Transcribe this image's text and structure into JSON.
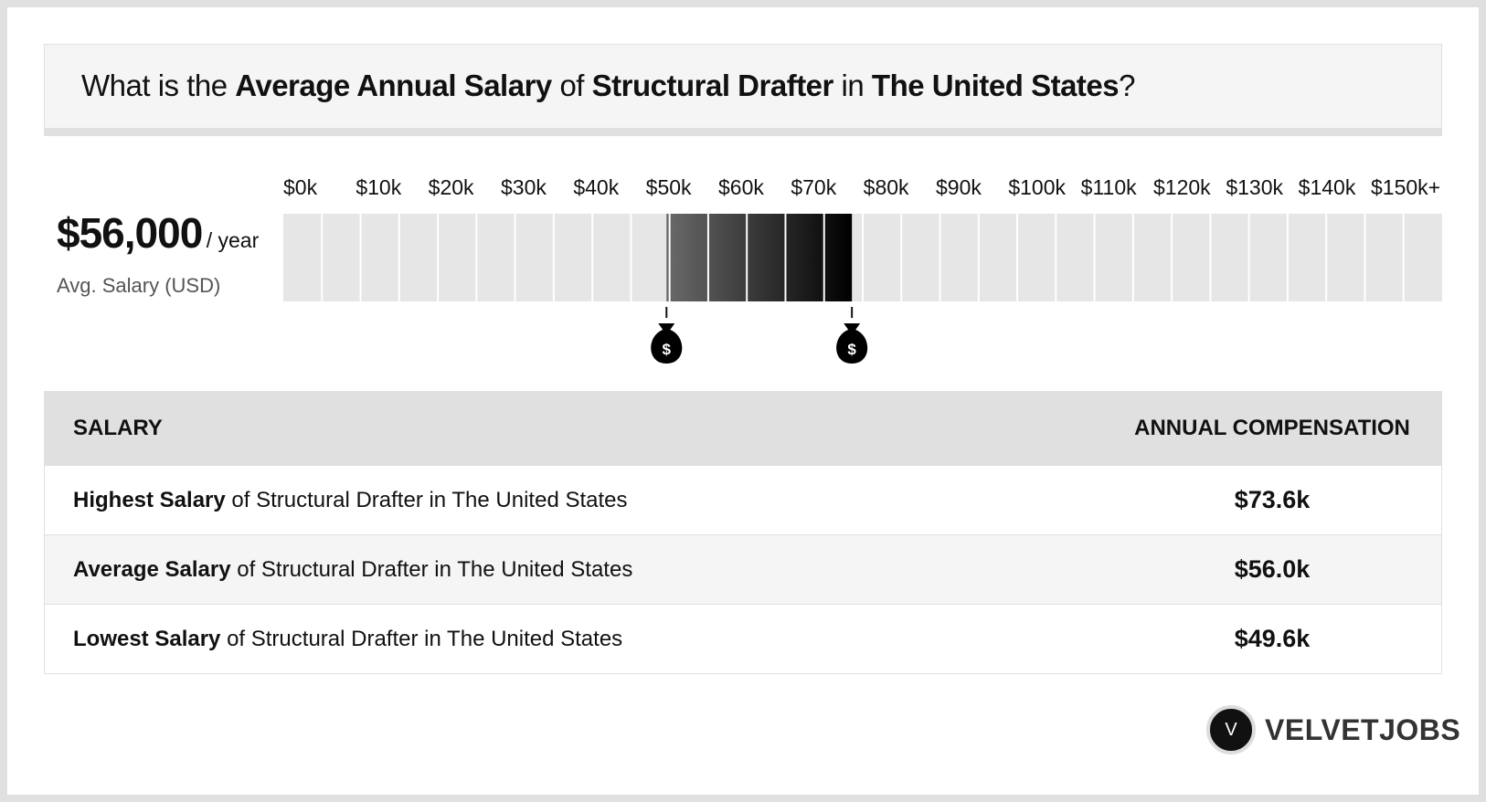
{
  "header": {
    "title": [
      {
        "text": "What is the ",
        "bold": false
      },
      {
        "text": "Average Annual Salary",
        "bold": true
      },
      {
        "text": " of ",
        "bold": false
      },
      {
        "text": "Structural Drafter",
        "bold": true
      },
      {
        "text": " in ",
        "bold": false
      },
      {
        "text": "The United States",
        "bold": true
      },
      {
        "text": "?",
        "bold": false
      }
    ]
  },
  "summary": {
    "value": "$56,000",
    "unit": "/ year",
    "caption": "Avg. Salary (USD)"
  },
  "range_chart": {
    "xlim": [
      0,
      150
    ],
    "ticks": [
      {
        "value": 0,
        "label": "$0k"
      },
      {
        "value": 10,
        "label": "$10k"
      },
      {
        "value": 20,
        "label": "$20k"
      },
      {
        "value": 30,
        "label": "$30k"
      },
      {
        "value": 40,
        "label": "$40k"
      },
      {
        "value": 50,
        "label": "$50k"
      },
      {
        "value": 60,
        "label": "$60k"
      },
      {
        "value": 70,
        "label": "$70k"
      },
      {
        "value": 80,
        "label": "$80k"
      },
      {
        "value": 90,
        "label": "$90k"
      },
      {
        "value": 100,
        "label": "$100k"
      },
      {
        "value": 110,
        "label": "$110k"
      },
      {
        "value": 120,
        "label": "$120k"
      },
      {
        "value": 130,
        "label": "$130k"
      },
      {
        "value": 140,
        "label": "$140k"
      },
      {
        "value": 150,
        "label": "$150k+"
      }
    ],
    "low": 49.6,
    "high": 73.6
  },
  "table": {
    "headers": [
      "SALARY",
      "ANNUAL COMPENSATION"
    ],
    "rows": [
      {
        "bold": "Highest Salary",
        "rest": " of Structural Drafter in The United States",
        "value": "$73.6k"
      },
      {
        "bold": "Average Salary",
        "rest": " of Structural Drafter in The United States",
        "value": "$56.0k"
      },
      {
        "bold": "Lowest Salary",
        "rest": " of Structural Drafter in The United States",
        "value": "$49.6k"
      }
    ]
  },
  "brand": {
    "letter": "V",
    "name": "VELVETJOBS"
  }
}
